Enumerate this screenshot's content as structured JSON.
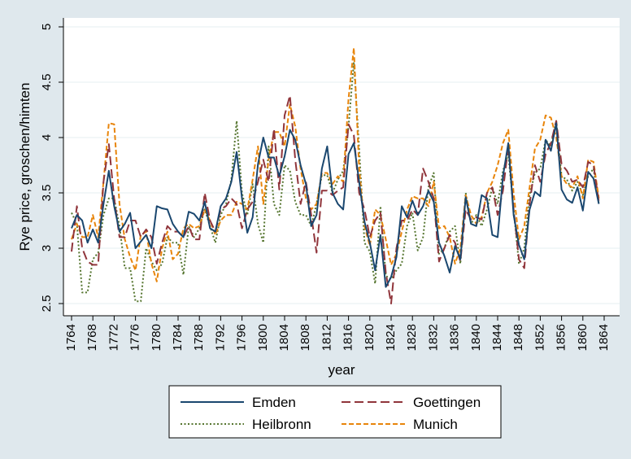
{
  "chart_data": {
    "type": "line",
    "xlabel": "year",
    "ylabel": "Rye price, groschen/himten",
    "xlim": [
      1764,
      1864
    ],
    "ylim": [
      2.5,
      5
    ],
    "x_ticks": [
      1764,
      1768,
      1772,
      1776,
      1780,
      1784,
      1788,
      1792,
      1796,
      1800,
      1804,
      1808,
      1812,
      1816,
      1820,
      1824,
      1828,
      1832,
      1836,
      1840,
      1844,
      1848,
      1852,
      1856,
      1860,
      1864
    ],
    "y_ticks": [
      2.5,
      3,
      3.5,
      4,
      4.5,
      5
    ],
    "y_tick_labels": [
      "2.5",
      "3",
      "3.5",
      "4",
      "4.5",
      "5"
    ],
    "grid": true,
    "legend_position": "bottom",
    "x": [
      1764,
      1765,
      1766,
      1767,
      1768,
      1769,
      1770,
      1771,
      1772,
      1773,
      1774,
      1775,
      1776,
      1777,
      1778,
      1779,
      1780,
      1781,
      1782,
      1783,
      1784,
      1785,
      1786,
      1787,
      1788,
      1789,
      1790,
      1791,
      1792,
      1793,
      1794,
      1795,
      1796,
      1797,
      1798,
      1799,
      1800,
      1801,
      1802,
      1803,
      1804,
      1805,
      1806,
      1807,
      1808,
      1809,
      1810,
      1811,
      1812,
      1813,
      1814,
      1815,
      1816,
      1817,
      1818,
      1819,
      1820,
      1821,
      1822,
      1823,
      1824,
      1825,
      1826,
      1827,
      1828,
      1829,
      1830,
      1831,
      1832,
      1833,
      1834,
      1835,
      1836,
      1837,
      1838,
      1839,
      1840,
      1841,
      1842,
      1843,
      1844,
      1845,
      1846,
      1847,
      1848,
      1849,
      1850,
      1851,
      1852,
      1853,
      1854,
      1855,
      1856,
      1857,
      1858,
      1859,
      1860,
      1861,
      1862,
      1863
    ],
    "series": [
      {
        "name": "Emden",
        "color": "#1a476f",
        "dash": "solid",
        "values": [
          3.18,
          3.3,
          3.25,
          3.05,
          3.17,
          3.05,
          3.4,
          3.7,
          3.38,
          3.15,
          3.22,
          3.32,
          3.0,
          3.06,
          3.12,
          3.0,
          3.38,
          3.36,
          3.35,
          3.22,
          3.15,
          3.1,
          3.33,
          3.31,
          3.25,
          3.42,
          3.18,
          3.15,
          3.38,
          3.45,
          3.6,
          3.87,
          3.45,
          3.14,
          3.28,
          3.76,
          4.0,
          3.82,
          3.82,
          3.65,
          3.83,
          4.07,
          3.98,
          3.75,
          3.58,
          3.2,
          3.3,
          3.72,
          3.92,
          3.5,
          3.4,
          3.35,
          3.85,
          3.95,
          3.6,
          3.24,
          3.05,
          2.8,
          3.12,
          2.65,
          2.74,
          2.92,
          3.38,
          3.28,
          3.43,
          3.3,
          3.38,
          3.52,
          3.42,
          3.05,
          2.93,
          2.78,
          3.02,
          2.9,
          3.46,
          3.22,
          3.2,
          3.48,
          3.45,
          3.12,
          3.1,
          3.65,
          3.95,
          3.3,
          3.03,
          2.9,
          3.35,
          3.51,
          3.47,
          3.98,
          3.88,
          4.13,
          3.53,
          3.44,
          3.41,
          3.55,
          3.34,
          3.69,
          3.63,
          3.4
        ]
      },
      {
        "name": "Goettingen",
        "color": "#90353b",
        "dash": "dashed",
        "values": [
          2.97,
          3.38,
          3.0,
          2.88,
          2.85,
          2.85,
          3.6,
          3.94,
          3.45,
          3.1,
          3.1,
          3.25,
          3.25,
          3.1,
          3.17,
          3.1,
          2.86,
          3.05,
          3.2,
          3.15,
          3.15,
          3.1,
          3.2,
          3.08,
          3.08,
          3.5,
          3.25,
          3.15,
          3.35,
          3.38,
          3.45,
          3.4,
          3.18,
          3.35,
          3.42,
          3.6,
          3.8,
          3.6,
          4.08,
          3.53,
          4.2,
          4.38,
          3.8,
          3.4,
          3.6,
          3.3,
          2.96,
          3.52,
          3.52,
          3.48,
          3.52,
          3.55,
          4.12,
          4.02,
          3.5,
          3.35,
          3.1,
          3.25,
          3.32,
          2.78,
          2.5,
          3.0,
          3.25,
          3.25,
          3.35,
          3.3,
          3.72,
          3.6,
          3.45,
          2.88,
          3.0,
          3.12,
          3.05,
          2.88,
          3.35,
          3.26,
          3.28,
          3.26,
          3.5,
          3.55,
          3.3,
          3.52,
          3.92,
          3.35,
          2.9,
          2.82,
          3.4,
          3.75,
          3.6,
          3.85,
          3.95,
          4.15,
          3.76,
          3.7,
          3.6,
          3.62,
          3.55,
          3.78,
          3.75,
          3.42
        ]
      },
      {
        "name": "Heilbronn",
        "color": "#55752f",
        "dash": "dotted",
        "values": [
          3.32,
          3.22,
          2.6,
          2.6,
          2.9,
          2.96,
          3.3,
          3.45,
          3.45,
          3.2,
          2.82,
          2.82,
          2.52,
          2.52,
          3.0,
          2.88,
          2.8,
          2.86,
          3.1,
          3.05,
          3.05,
          2.76,
          3.2,
          3.1,
          3.18,
          3.35,
          3.2,
          3.05,
          3.3,
          3.4,
          3.62,
          4.15,
          3.5,
          3.3,
          3.58,
          3.22,
          3.05,
          3.92,
          3.4,
          3.3,
          3.75,
          3.7,
          3.42,
          3.3,
          3.3,
          3.2,
          3.4,
          3.66,
          3.66,
          3.5,
          3.62,
          3.7,
          4.1,
          4.68,
          3.9,
          3.05,
          2.97,
          2.68,
          3.38,
          2.75,
          2.72,
          2.8,
          2.86,
          3.2,
          3.32,
          2.98,
          3.1,
          3.55,
          3.68,
          2.95,
          3.0,
          3.15,
          3.2,
          2.86,
          3.5,
          3.22,
          3.3,
          3.2,
          3.35,
          3.55,
          3.4,
          3.7,
          3.85,
          3.35,
          2.86,
          3.0,
          3.48,
          3.68,
          3.72,
          3.98,
          3.92,
          4.15,
          3.65,
          3.62,
          3.52,
          3.6,
          3.48,
          3.65,
          3.72,
          3.4
        ]
      },
      {
        "name": "Munich",
        "color": "#e8850b",
        "dash": "short-dashed",
        "values": [
          3.08,
          3.22,
          3.1,
          3.1,
          3.3,
          3.1,
          3.6,
          4.13,
          4.12,
          3.4,
          3.08,
          2.92,
          2.8,
          3.12,
          3.15,
          2.86,
          2.7,
          3.0,
          3.15,
          2.9,
          2.95,
          3.18,
          3.22,
          3.18,
          3.2,
          3.35,
          3.25,
          3.12,
          3.25,
          3.3,
          3.3,
          3.42,
          3.4,
          3.35,
          3.62,
          3.92,
          3.4,
          3.8,
          4.05,
          4.05,
          3.92,
          4.3,
          4.1,
          3.72,
          3.45,
          3.35,
          3.4,
          3.68,
          3.68,
          3.58,
          3.65,
          3.6,
          4.35,
          4.81,
          3.72,
          3.2,
          3.02,
          3.35,
          3.3,
          3.08,
          2.85,
          2.95,
          3.15,
          3.35,
          3.47,
          3.45,
          3.45,
          3.38,
          3.6,
          3.18,
          3.2,
          3.1,
          2.86,
          3.0,
          3.48,
          3.3,
          3.22,
          3.28,
          3.5,
          3.6,
          3.75,
          3.95,
          4.07,
          3.5,
          3.08,
          3.2,
          3.55,
          3.9,
          3.98,
          4.2,
          4.18,
          4.0,
          3.65,
          3.58,
          3.55,
          3.65,
          3.45,
          3.8,
          3.78,
          3.45
        ]
      }
    ]
  }
}
